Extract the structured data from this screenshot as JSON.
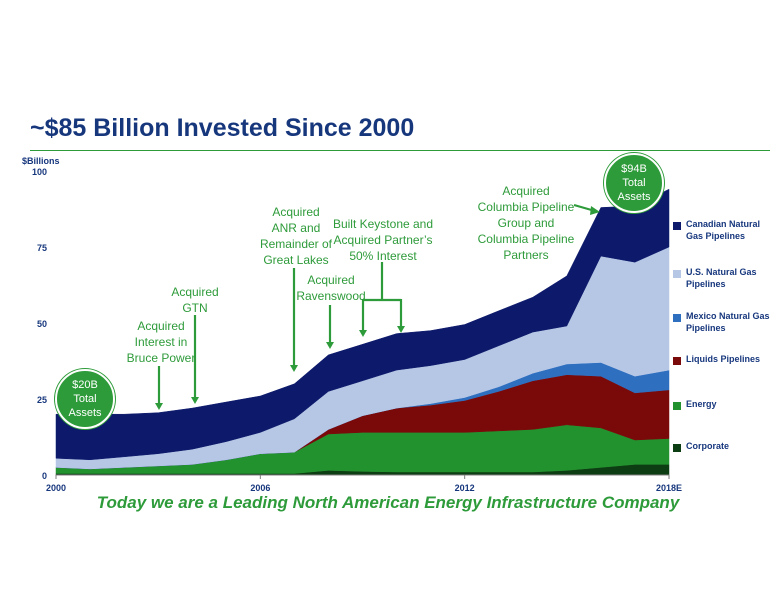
{
  "page": {
    "title": "~$85 Billion Invested Since 2000",
    "subtitle": "Today we are a Leading North American Energy Infrastructure Company"
  },
  "bubbles": {
    "start": {
      "value": "$20B",
      "label": "Total Assets"
    },
    "end": {
      "value": "$94B",
      "label": "Total Assets"
    }
  },
  "annotations": {
    "bruce_power": [
      "Acquired",
      "Interest in",
      "Bruce Power"
    ],
    "gtn": [
      "Acquired",
      "GTN"
    ],
    "anr": [
      "Acquired",
      "ANR and",
      "Remainder of",
      "Great Lakes"
    ],
    "ravenswood": [
      "Acquired",
      "Ravenswood"
    ],
    "keystone": [
      "Built Keystone and",
      "Acquired Partner’s",
      "50% Interest"
    ],
    "columbia": [
      "Acquired",
      "Columbia Pipeline",
      "Group and",
      "Columbia Pipeline",
      "Partners"
    ]
  },
  "colors": {
    "canadian_gas": "#0d1a6b",
    "us_gas": "#b6c7e6",
    "mexico_gas": "#2f6fc0",
    "liquids": "#7a0a0a",
    "energy": "#22922e",
    "corporate": "#0d3d12",
    "accent_green": "#2e9b3a",
    "title_blue": "#17377d"
  },
  "chart_data": {
    "type": "area",
    "stacked": true,
    "ylabel": "$Billions",
    "ylim": [
      0,
      100
    ],
    "y_ticks": [
      0,
      25,
      50,
      75,
      100
    ],
    "x_tick_labels": [
      "2000",
      "2006",
      "2012",
      "2018E"
    ],
    "x": [
      "2000",
      "2001",
      "2002",
      "2003",
      "2004",
      "2005",
      "2006",
      "2007",
      "2008",
      "2009",
      "2010",
      "2011",
      "2012",
      "2013",
      "2014",
      "2015",
      "2016",
      "2017",
      "2018E"
    ],
    "legend_position": "right",
    "series": [
      {
        "name": "Corporate",
        "color_key": "corporate",
        "values": [
          0.5,
          0.5,
          0.5,
          0.5,
          0.5,
          0.5,
          0.5,
          0.5,
          1.5,
          1.2,
          1.0,
          1.0,
          1.0,
          1.0,
          1.0,
          1.5,
          2.5,
          3.5,
          3.5
        ]
      },
      {
        "name": "Energy",
        "color_key": "energy",
        "values": [
          2.0,
          1.5,
          2.0,
          2.5,
          3.0,
          4.5,
          6.5,
          7.0,
          12.0,
          12.8,
          13.0,
          13.0,
          13.0,
          13.5,
          14.0,
          15.0,
          13.0,
          8.0,
          8.5
        ]
      },
      {
        "name": "Liquids Pipelines",
        "color_key": "liquids",
        "values": [
          0,
          0,
          0,
          0,
          0,
          0,
          0,
          0,
          1.5,
          5.5,
          8.0,
          9.0,
          10.5,
          13.0,
          16.0,
          16.5,
          17.0,
          15.5,
          16.0
        ]
      },
      {
        "name": "Mexico Natural Gas Pipelines",
        "color_key": "mexico_gas",
        "values": [
          0,
          0,
          0,
          0,
          0,
          0,
          0,
          0,
          0,
          0,
          0,
          0.5,
          1.0,
          1.5,
          2.5,
          3.5,
          4.5,
          5.5,
          6.5
        ]
      },
      {
        "name": "U.S. Natural Gas Pipelines",
        "color_key": "us_gas",
        "values": [
          3.0,
          3.0,
          3.5,
          4.0,
          5.0,
          6.0,
          7.0,
          11.0,
          12.5,
          11.5,
          12.5,
          12.5,
          12.5,
          13.5,
          13.5,
          12.5,
          35.0,
          37.5,
          40.5
        ]
      },
      {
        "name": "Canadian  Natural Gas Pipelines",
        "color_key": "canadian_gas",
        "values": [
          14.5,
          15.0,
          14.0,
          13.5,
          13.5,
          13.0,
          12.0,
          11.5,
          12.0,
          12.0,
          12.0,
          11.5,
          11.5,
          11.5,
          11.5,
          16.5,
          16.0,
          18.5,
          19.0
        ]
      }
    ]
  }
}
